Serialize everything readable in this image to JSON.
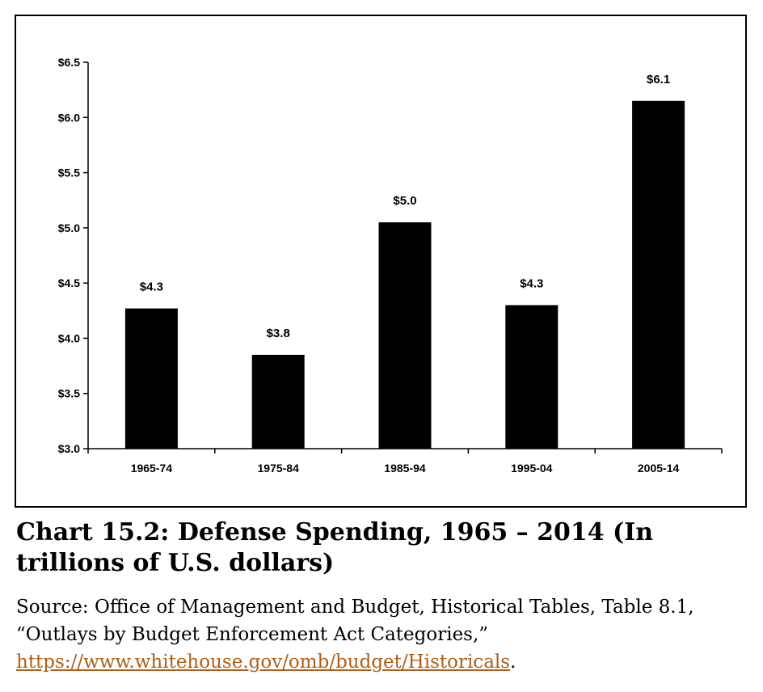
{
  "chart_data": {
    "type": "bar",
    "categories": [
      "1965-74",
      "1975-84",
      "1985-94",
      "1995-04",
      "2005-14"
    ],
    "values": [
      4.27,
      3.85,
      5.05,
      4.3,
      6.15
    ],
    "data_labels": [
      "$4.3",
      "$3.8",
      "$5.0",
      "$4.3",
      "$6.1"
    ],
    "y_ticks": [
      "$3.0",
      "$3.5",
      "$4.0",
      "$4.5",
      "$5.0",
      "$5.5",
      "$6.0",
      "$6.5"
    ],
    "y_tick_values": [
      3.0,
      3.5,
      4.0,
      4.5,
      5.0,
      5.5,
      6.0,
      6.5
    ],
    "ylim": [
      3.0,
      6.5
    ],
    "bar_color": "#000000",
    "grid": false,
    "legend": false
  },
  "caption": {
    "title": "Chart 15.2: Defense Spending, 1965 – 2014 (In trillions of U.S. dollars)",
    "source_text": "Source: Office of Management and Budget, Historical Tables, Table 8.1, “Outlays by Budget Enforcement Act Categories,” ",
    "source_link": "https://www.whitehouse.gov/omb/budget/Historicals",
    "source_end": "."
  }
}
